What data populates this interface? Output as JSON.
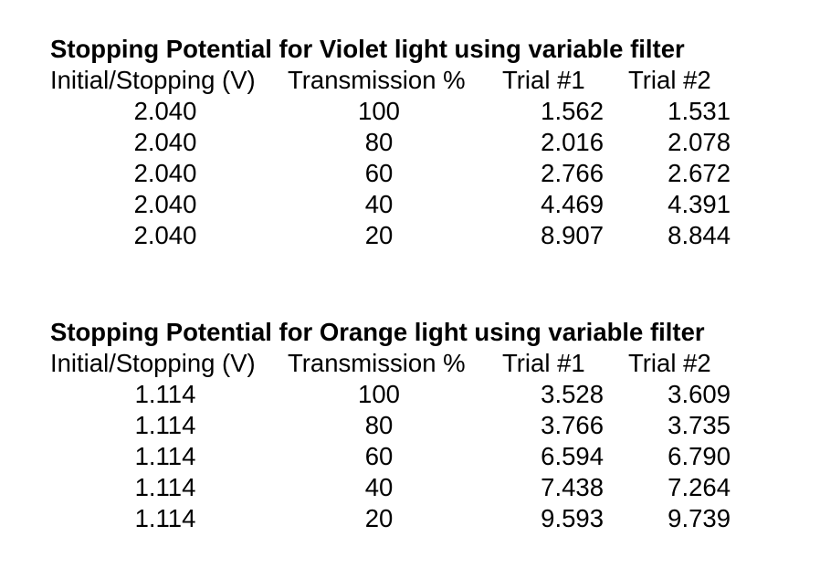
{
  "document": {
    "background_color": "#ffffff",
    "text_color": "#000000",
    "tables": [
      {
        "title": "Stopping Potential for Violet light using variable filter",
        "headers": [
          "Initial/Stopping (V)",
          "Transmission %",
          "Trial #1",
          "Trial #2"
        ],
        "rows": [
          [
            "2.040",
            "100",
            "1.562",
            "1.531"
          ],
          [
            "2.040",
            "80",
            "2.016",
            "2.078"
          ],
          [
            "2.040",
            "60",
            "2.766",
            "2.672"
          ],
          [
            "2.040",
            "40",
            "4.469",
            "4.391"
          ],
          [
            "2.040",
            "20",
            "8.907",
            "8.844"
          ]
        ]
      },
      {
        "title": "Stopping Potential for Orange light using variable filter",
        "headers": [
          "Initial/Stopping (V)",
          "Transmission %",
          "Trial #1",
          "Trial #2"
        ],
        "rows": [
          [
            "1.114",
            "100",
            "3.528",
            "3.609"
          ],
          [
            "1.114",
            "80",
            "3.766",
            "3.735"
          ],
          [
            "1.114",
            "60",
            "6.594",
            "6.790"
          ],
          [
            "1.114",
            "40",
            "7.438",
            "7.264"
          ],
          [
            "1.114",
            "20",
            "9.593",
            "9.739"
          ]
        ]
      }
    ]
  }
}
